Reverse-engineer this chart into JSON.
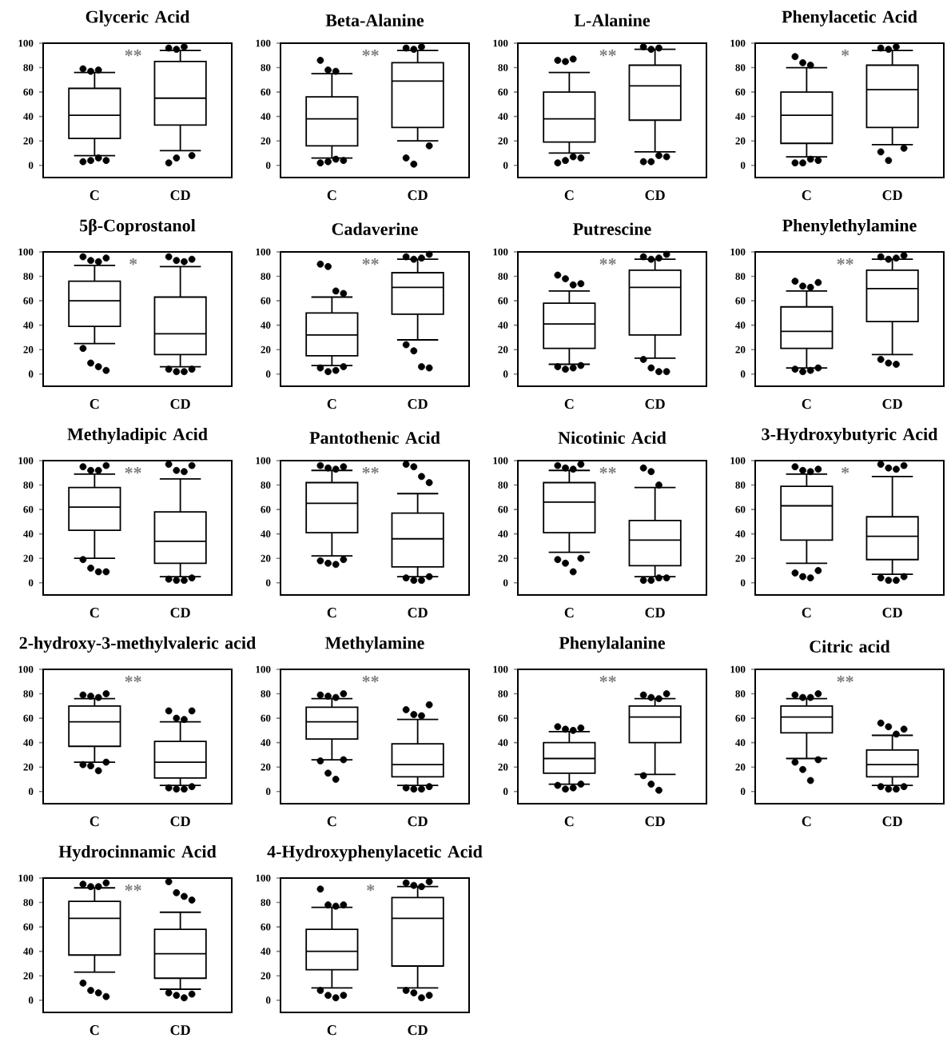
{
  "chart_data": [
    {
      "type": "box",
      "title": "Glyceric Acid",
      "categories": [
        "C",
        "CD"
      ],
      "boxes": [
        {
          "low": 8,
          "q1": 22,
          "median": 41,
          "q3": 63,
          "high": 76,
          "outliers": [
            79,
            77,
            78,
            4,
            3,
            4,
            6
          ]
        },
        {
          "low": 12,
          "q1": 33,
          "median": 55,
          "q3": 85,
          "high": 94,
          "outliers": [
            96,
            95,
            97,
            8,
            2,
            6
          ]
        }
      ],
      "ylim": [
        -10,
        100
      ],
      "yticks": [
        0,
        20,
        40,
        60,
        80,
        100
      ],
      "annotations": [
        "**"
      ]
    },
    {
      "type": "box",
      "title": "Beta-Alanine",
      "categories": [
        "C",
        "CD"
      ],
      "boxes": [
        {
          "low": 6,
          "q1": 16,
          "median": 38,
          "q3": 56,
          "high": 75,
          "outliers": [
            86,
            78,
            77,
            4,
            2,
            3,
            5
          ]
        },
        {
          "low": 20,
          "q1": 31,
          "median": 69,
          "q3": 84,
          "high": 94,
          "outliers": [
            96,
            95,
            97,
            16,
            6,
            1
          ]
        }
      ],
      "ylim": [
        -10,
        100
      ],
      "yticks": [
        0,
        20,
        40,
        60,
        80,
        100
      ],
      "annotations": [
        "**"
      ]
    },
    {
      "type": "box",
      "title": "L-Alanine",
      "categories": [
        "C",
        "CD"
      ],
      "boxes": [
        {
          "low": 10,
          "q1": 19,
          "median": 38,
          "q3": 60,
          "high": 76,
          "outliers": [
            86,
            85,
            87,
            6,
            2,
            4,
            7
          ]
        },
        {
          "low": 11,
          "q1": 37,
          "median": 65,
          "q3": 82,
          "high": 95,
          "outliers": [
            97,
            95,
            96,
            7,
            3,
            3,
            8
          ]
        }
      ],
      "ylim": [
        -10,
        100
      ],
      "yticks": [
        0,
        20,
        40,
        60,
        80,
        100
      ],
      "annotations": [
        "**"
      ]
    },
    {
      "type": "box",
      "title": "Phenylacetic Acid",
      "categories": [
        "C",
        "CD"
      ],
      "boxes": [
        {
          "low": 7,
          "q1": 18,
          "median": 41,
          "q3": 60,
          "high": 80,
          "outliers": [
            89,
            84,
            82,
            4,
            2,
            2,
            5
          ]
        },
        {
          "low": 17,
          "q1": 31,
          "median": 62,
          "q3": 82,
          "high": 94,
          "outliers": [
            96,
            95,
            97,
            14,
            11,
            4
          ]
        }
      ],
      "ylim": [
        -10,
        100
      ],
      "yticks": [
        0,
        20,
        40,
        60,
        80,
        100
      ],
      "annotations": [
        "*"
      ]
    },
    {
      "type": "box",
      "title": "5β-Coprostanol",
      "categories": [
        "C",
        "CD"
      ],
      "boxes": [
        {
          "low": 25,
          "q1": 39,
          "median": 60,
          "q3": 76,
          "high": 89,
          "outliers": [
            96,
            93,
            92,
            95,
            21,
            9,
            6,
            3
          ]
        },
        {
          "low": 6,
          "q1": 16,
          "median": 33,
          "q3": 63,
          "high": 88,
          "outliers": [
            96,
            93,
            92,
            94,
            4,
            2,
            2,
            4
          ]
        }
      ],
      "ylim": [
        -10,
        100
      ],
      "yticks": [
        0,
        20,
        40,
        60,
        80,
        100
      ],
      "annotations": [
        "*"
      ]
    },
    {
      "type": "box",
      "title": "Cadaverine",
      "categories": [
        "C",
        "CD"
      ],
      "boxes": [
        {
          "low": 7,
          "q1": 15,
          "median": 32,
          "q3": 50,
          "high": 63,
          "outliers": [
            90,
            88,
            68,
            66,
            5,
            2,
            3,
            6
          ]
        },
        {
          "low": 28,
          "q1": 49,
          "median": 71,
          "q3": 83,
          "high": 94,
          "outliers": [
            96,
            94,
            95,
            98,
            24,
            19,
            6,
            5
          ]
        }
      ],
      "ylim": [
        -10,
        100
      ],
      "yticks": [
        0,
        20,
        40,
        60,
        80,
        100
      ],
      "annotations": [
        "**"
      ]
    },
    {
      "type": "box",
      "title": "Putrescine",
      "categories": [
        "C",
        "CD"
      ],
      "boxes": [
        {
          "low": 8,
          "q1": 21,
          "median": 41,
          "q3": 58,
          "high": 68,
          "outliers": [
            81,
            78,
            73,
            74,
            6,
            4,
            5,
            7
          ]
        },
        {
          "low": 13,
          "q1": 32,
          "median": 71,
          "q3": 85,
          "high": 94,
          "outliers": [
            96,
            94,
            95,
            98,
            12,
            5,
            2,
            2
          ]
        }
      ],
      "ylim": [
        -10,
        100
      ],
      "yticks": [
        0,
        20,
        40,
        60,
        80,
        100
      ],
      "annotations": [
        "**"
      ]
    },
    {
      "type": "box",
      "title": "Phenylethylamine",
      "categories": [
        "C",
        "CD"
      ],
      "boxes": [
        {
          "low": 5,
          "q1": 21,
          "median": 35,
          "q3": 55,
          "high": 68,
          "outliers": [
            76,
            72,
            71,
            75,
            4,
            2,
            3,
            5
          ]
        },
        {
          "low": 16,
          "q1": 43,
          "median": 70,
          "q3": 85,
          "high": 94,
          "outliers": [
            96,
            94,
            95,
            97,
            12,
            9,
            8
          ]
        }
      ],
      "ylim": [
        -10,
        100
      ],
      "yticks": [
        0,
        20,
        40,
        60,
        80,
        100
      ],
      "annotations": [
        "**"
      ]
    },
    {
      "type": "box",
      "title": "Methyladipic Acid",
      "categories": [
        "C",
        "CD"
      ],
      "boxes": [
        {
          "low": 20,
          "q1": 43,
          "median": 62,
          "q3": 78,
          "high": 89,
          "outliers": [
            95,
            92,
            92,
            96,
            19,
            12,
            9,
            9
          ]
        },
        {
          "low": 5,
          "q1": 16,
          "median": 34,
          "q3": 58,
          "high": 85,
          "outliers": [
            97,
            92,
            91,
            96,
            3,
            2,
            2,
            4
          ]
        }
      ],
      "ylim": [
        -10,
        100
      ],
      "yticks": [
        0,
        20,
        40,
        60,
        80,
        100
      ],
      "annotations": [
        "**"
      ]
    },
    {
      "type": "box",
      "title": "Pantothenic Acid",
      "categories": [
        "C",
        "CD"
      ],
      "boxes": [
        {
          "low": 22,
          "q1": 41,
          "median": 65,
          "q3": 82,
          "high": 92,
          "outliers": [
            96,
            94,
            93,
            95,
            18,
            16,
            15,
            19
          ]
        },
        {
          "low": 5,
          "q1": 13,
          "median": 36,
          "q3": 57,
          "high": 73,
          "outliers": [
            97,
            95,
            87,
            82,
            4,
            2,
            2,
            5
          ]
        }
      ],
      "ylim": [
        -10,
        100
      ],
      "yticks": [
        0,
        20,
        40,
        60,
        80,
        100
      ],
      "annotations": [
        "**"
      ]
    },
    {
      "type": "box",
      "title": "Nicotinic Acid",
      "categories": [
        "C",
        "CD"
      ],
      "boxes": [
        {
          "low": 25,
          "q1": 41,
          "median": 66,
          "q3": 82,
          "high": 92,
          "outliers": [
            96,
            94,
            93,
            97,
            19,
            16,
            9,
            20
          ]
        },
        {
          "low": 5,
          "q1": 14,
          "median": 35,
          "q3": 51,
          "high": 78,
          "outliers": [
            94,
            91,
            80,
            4,
            2,
            2,
            4
          ]
        }
      ],
      "ylim": [
        -10,
        100
      ],
      "yticks": [
        0,
        20,
        40,
        60,
        80,
        100
      ],
      "annotations": [
        "**"
      ]
    },
    {
      "type": "box",
      "title": "3-Hydroxybutyric Acid",
      "categories": [
        "C",
        "CD"
      ],
      "boxes": [
        {
          "low": 16,
          "q1": 35,
          "median": 63,
          "q3": 79,
          "high": 89,
          "outliers": [
            95,
            92,
            91,
            93,
            8,
            5,
            4,
            10
          ]
        },
        {
          "low": 7,
          "q1": 19,
          "median": 38,
          "q3": 54,
          "high": 87,
          "outliers": [
            97,
            94,
            93,
            96,
            4,
            2,
            2,
            5
          ]
        }
      ],
      "ylim": [
        -10,
        100
      ],
      "yticks": [
        0,
        20,
        40,
        60,
        80,
        100
      ],
      "annotations": [
        "*"
      ]
    },
    {
      "type": "box",
      "title": "2-hydroxy-3-methylvaleric acid",
      "categories": [
        "C",
        "CD"
      ],
      "boxes": [
        {
          "low": 24,
          "q1": 37,
          "median": 57,
          "q3": 70,
          "high": 76,
          "outliers": [
            79,
            78,
            77,
            80,
            22,
            21,
            17,
            24
          ]
        },
        {
          "low": 5,
          "q1": 11,
          "median": 24,
          "q3": 41,
          "high": 57,
          "outliers": [
            66,
            60,
            59,
            66,
            3,
            2,
            2,
            4
          ]
        }
      ],
      "ylim": [
        -10,
        100
      ],
      "yticks": [
        0,
        20,
        40,
        60,
        80,
        100
      ],
      "annotations": [
        "**"
      ]
    },
    {
      "type": "box",
      "title": "Methylamine",
      "categories": [
        "C",
        "CD"
      ],
      "boxes": [
        {
          "low": 26,
          "q1": 43,
          "median": 57,
          "q3": 69,
          "high": 76,
          "outliers": [
            79,
            78,
            77,
            80,
            25,
            15,
            10,
            26
          ]
        },
        {
          "low": 5,
          "q1": 12,
          "median": 22,
          "q3": 39,
          "high": 59,
          "outliers": [
            67,
            63,
            62,
            71,
            3,
            2,
            2,
            4
          ]
        }
      ],
      "ylim": [
        -10,
        100
      ],
      "yticks": [
        0,
        20,
        40,
        60,
        80,
        100
      ],
      "annotations": [
        "**"
      ]
    },
    {
      "type": "box",
      "title": "Phenylalanine",
      "categories": [
        "C",
        "CD"
      ],
      "boxes": [
        {
          "low": 6,
          "q1": 15,
          "median": 27,
          "q3": 40,
          "high": 49,
          "outliers": [
            53,
            51,
            50,
            52,
            5,
            2,
            3,
            6
          ]
        },
        {
          "low": 14,
          "q1": 40,
          "median": 61,
          "q3": 70,
          "high": 76,
          "outliers": [
            79,
            77,
            76,
            80,
            13,
            6,
            1
          ]
        }
      ],
      "ylim": [
        -10,
        100
      ],
      "yticks": [
        0,
        20,
        40,
        60,
        80,
        100
      ],
      "annotations": [
        "**"
      ]
    },
    {
      "type": "box",
      "title": "Citric acid",
      "categories": [
        "C",
        "CD"
      ],
      "boxes": [
        {
          "low": 27,
          "q1": 48,
          "median": 61,
          "q3": 70,
          "high": 76,
          "outliers": [
            79,
            77,
            77,
            80,
            24,
            18,
            9,
            26
          ]
        },
        {
          "low": 5,
          "q1": 12,
          "median": 22,
          "q3": 34,
          "high": 46,
          "outliers": [
            56,
            53,
            47,
            51,
            4,
            2,
            2,
            4
          ]
        }
      ],
      "ylim": [
        -10,
        100
      ],
      "yticks": [
        0,
        20,
        40,
        60,
        80,
        100
      ],
      "annotations": [
        "**"
      ]
    },
    {
      "type": "box",
      "title": "Hydrocinnamic Acid",
      "categories": [
        "C",
        "CD"
      ],
      "boxes": [
        {
          "low": 23,
          "q1": 37,
          "median": 67,
          "q3": 81,
          "high": 92,
          "outliers": [
            95,
            93,
            93,
            96,
            14,
            8,
            6,
            3
          ]
        },
        {
          "low": 9,
          "q1": 18,
          "median": 38,
          "q3": 58,
          "high": 72,
          "outliers": [
            97,
            88,
            85,
            82,
            6,
            4,
            2,
            5
          ]
        }
      ],
      "ylim": [
        -10,
        100
      ],
      "yticks": [
        0,
        20,
        40,
        60,
        80,
        100
      ],
      "annotations": [
        "**"
      ]
    },
    {
      "type": "box",
      "title": "4-Hydroxyphenylacetic Acid",
      "categories": [
        "C",
        "CD"
      ],
      "boxes": [
        {
          "low": 10,
          "q1": 25,
          "median": 40,
          "q3": 58,
          "high": 76,
          "outliers": [
            91,
            78,
            77,
            78,
            8,
            4,
            2,
            4
          ]
        },
        {
          "low": 10,
          "q1": 28,
          "median": 67,
          "q3": 84,
          "high": 93,
          "outliers": [
            96,
            94,
            93,
            97,
            8,
            6,
            2,
            4
          ]
        }
      ],
      "ylim": [
        -10,
        100
      ],
      "yticks": [
        0,
        20,
        40,
        60,
        80,
        100
      ],
      "annotations": [
        "*"
      ]
    }
  ]
}
